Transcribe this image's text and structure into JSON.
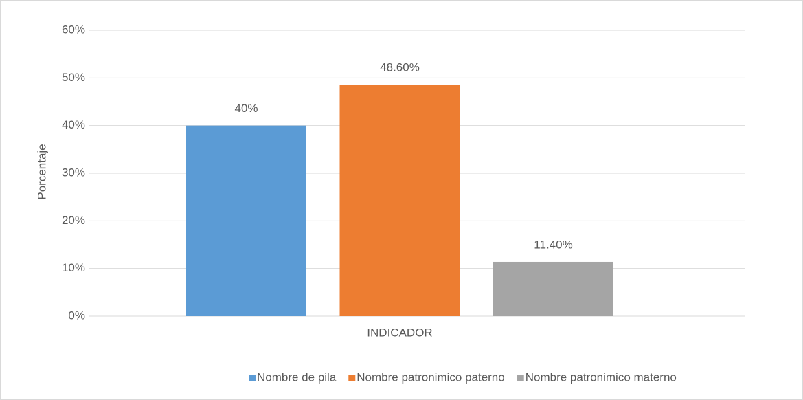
{
  "chart_data": {
    "type": "bar",
    "categories": [
      "INDICADOR"
    ],
    "y_label": "Porcentaje",
    "series": [
      {
        "name": "Nombre de pila",
        "color": "#5b9bd5",
        "values": [
          40
        ],
        "value_labels": [
          "40%"
        ]
      },
      {
        "name": "Nombre patronimico paterno",
        "color": "#ed7d31",
        "values": [
          48.6
        ],
        "value_labels": [
          "48.60%"
        ]
      },
      {
        "name": "Nombre patronimico materno",
        "color": "#a5a5a5",
        "values": [
          11.4
        ],
        "value_labels": [
          "11.40%"
        ]
      }
    ],
    "ylim": [
      0,
      60
    ],
    "yticks": [
      {
        "value": 0,
        "label": "0%"
      },
      {
        "value": 10,
        "label": "10%"
      },
      {
        "value": 20,
        "label": "20%"
      },
      {
        "value": 30,
        "label": "30%"
      },
      {
        "value": 40,
        "label": "40%"
      },
      {
        "value": 50,
        "label": "50%"
      },
      {
        "value": 60,
        "label": "60%"
      }
    ],
    "grid": true,
    "legend": "bottom"
  }
}
